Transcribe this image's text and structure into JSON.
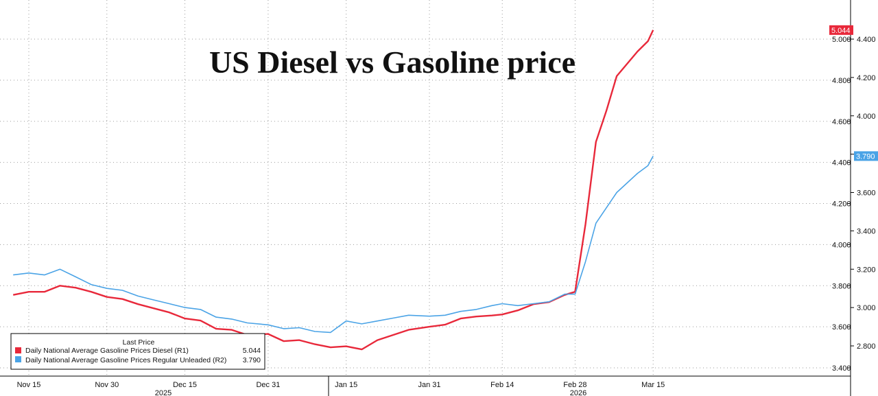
{
  "chart_data": {
    "type": "line",
    "title": "US Diesel vs Gasoline price",
    "x_ticks": [
      "Nov 15",
      "Nov 30",
      "Dec 15",
      "Dec 31",
      "Jan 15",
      "Jan 31",
      "Feb 14",
      "Feb 28",
      "Mar 15"
    ],
    "years": [
      "2025",
      "2026"
    ],
    "right_axis_r1": {
      "ticks": [
        "3.400",
        "3.600",
        "3.800",
        "4.000",
        "4.200",
        "4.400",
        "4.600",
        "4.800",
        "5.000"
      ],
      "ylim": [
        3.4,
        5.1
      ]
    },
    "left_axis_r2": {
      "ticks": [
        "2.800",
        "3.000",
        "3.200",
        "3.400",
        "3.600",
        "3.800",
        "4.000",
        "4.200",
        "4.400"
      ],
      "ylim": [
        2.8,
        4.55
      ]
    },
    "grid": true,
    "legend": {
      "position": "bottom-left",
      "header": "Last Price"
    },
    "series": [
      {
        "name": "Daily National Average Gasoline Prices Diesel  (R1)",
        "last_value": "5.044",
        "color": "#e8283a",
        "axis": "R1",
        "x": [
          "Nov 12",
          "Nov 15",
          "Nov 18",
          "Nov 21",
          "Nov 24",
          "Nov 27",
          "Nov 30",
          "Dec 3",
          "Dec 6",
          "Dec 9",
          "Dec 12",
          "Dec 15",
          "Dec 18",
          "Dec 21",
          "Dec 24",
          "Dec 27",
          "Dec 31",
          "Jan 3",
          "Jan 6",
          "Jan 9",
          "Jan 12",
          "Jan 15",
          "Jan 18",
          "Jan 21",
          "Jan 24",
          "Jan 27",
          "Jan 31",
          "Feb 3",
          "Feb 6",
          "Feb 9",
          "Feb 12",
          "Feb 14",
          "Feb 17",
          "Feb 20",
          "Feb 23",
          "Feb 26",
          "Feb 28",
          "Mar 2",
          "Mar 4",
          "Mar 6",
          "Mar 8",
          "Mar 10",
          "Mar 12",
          "Mar 14",
          "Mar 15"
        ],
        "values": [
          3.755,
          3.77,
          3.77,
          3.8,
          3.79,
          3.77,
          3.745,
          3.735,
          3.71,
          3.69,
          3.67,
          3.64,
          3.63,
          3.59,
          3.585,
          3.56,
          3.565,
          3.53,
          3.535,
          3.515,
          3.5,
          3.505,
          3.49,
          3.535,
          3.56,
          3.585,
          3.6,
          3.61,
          3.64,
          3.65,
          3.655,
          3.66,
          3.68,
          3.71,
          3.72,
          3.755,
          3.77,
          4.1,
          4.5,
          4.65,
          4.82,
          4.88,
          4.94,
          4.99,
          5.044
        ]
      },
      {
        "name": "Daily National Average Gasoline Prices Regular Unleaded  (R2)",
        "last_value": "3.790",
        "color": "#4aa3e6",
        "axis": "R2",
        "x": [
          "Nov 12",
          "Nov 15",
          "Nov 18",
          "Nov 21",
          "Nov 24",
          "Nov 27",
          "Nov 30",
          "Dec 3",
          "Dec 6",
          "Dec 9",
          "Dec 12",
          "Dec 15",
          "Dec 18",
          "Dec 21",
          "Dec 24",
          "Dec 27",
          "Dec 31",
          "Jan 3",
          "Jan 6",
          "Jan 9",
          "Jan 12",
          "Jan 15",
          "Jan 18",
          "Jan 21",
          "Jan 24",
          "Jan 27",
          "Jan 31",
          "Feb 3",
          "Feb 6",
          "Feb 9",
          "Feb 12",
          "Feb 14",
          "Feb 17",
          "Feb 20",
          "Feb 23",
          "Feb 26",
          "Feb 28",
          "Mar 2",
          "Mar 4",
          "Mar 6",
          "Mar 8",
          "Mar 10",
          "Mar 12",
          "Mar 14",
          "Mar 15"
        ],
        "values": [
          3.17,
          3.18,
          3.17,
          3.2,
          3.16,
          3.12,
          3.1,
          3.09,
          3.06,
          3.04,
          3.02,
          3.0,
          2.99,
          2.95,
          2.94,
          2.92,
          2.91,
          2.89,
          2.895,
          2.875,
          2.87,
          2.93,
          2.915,
          2.93,
          2.945,
          2.96,
          2.955,
          2.96,
          2.98,
          2.99,
          3.01,
          3.02,
          3.01,
          3.02,
          3.03,
          3.07,
          3.07,
          3.24,
          3.44,
          3.52,
          3.6,
          3.65,
          3.7,
          3.74,
          3.79
        ]
      }
    ]
  }
}
